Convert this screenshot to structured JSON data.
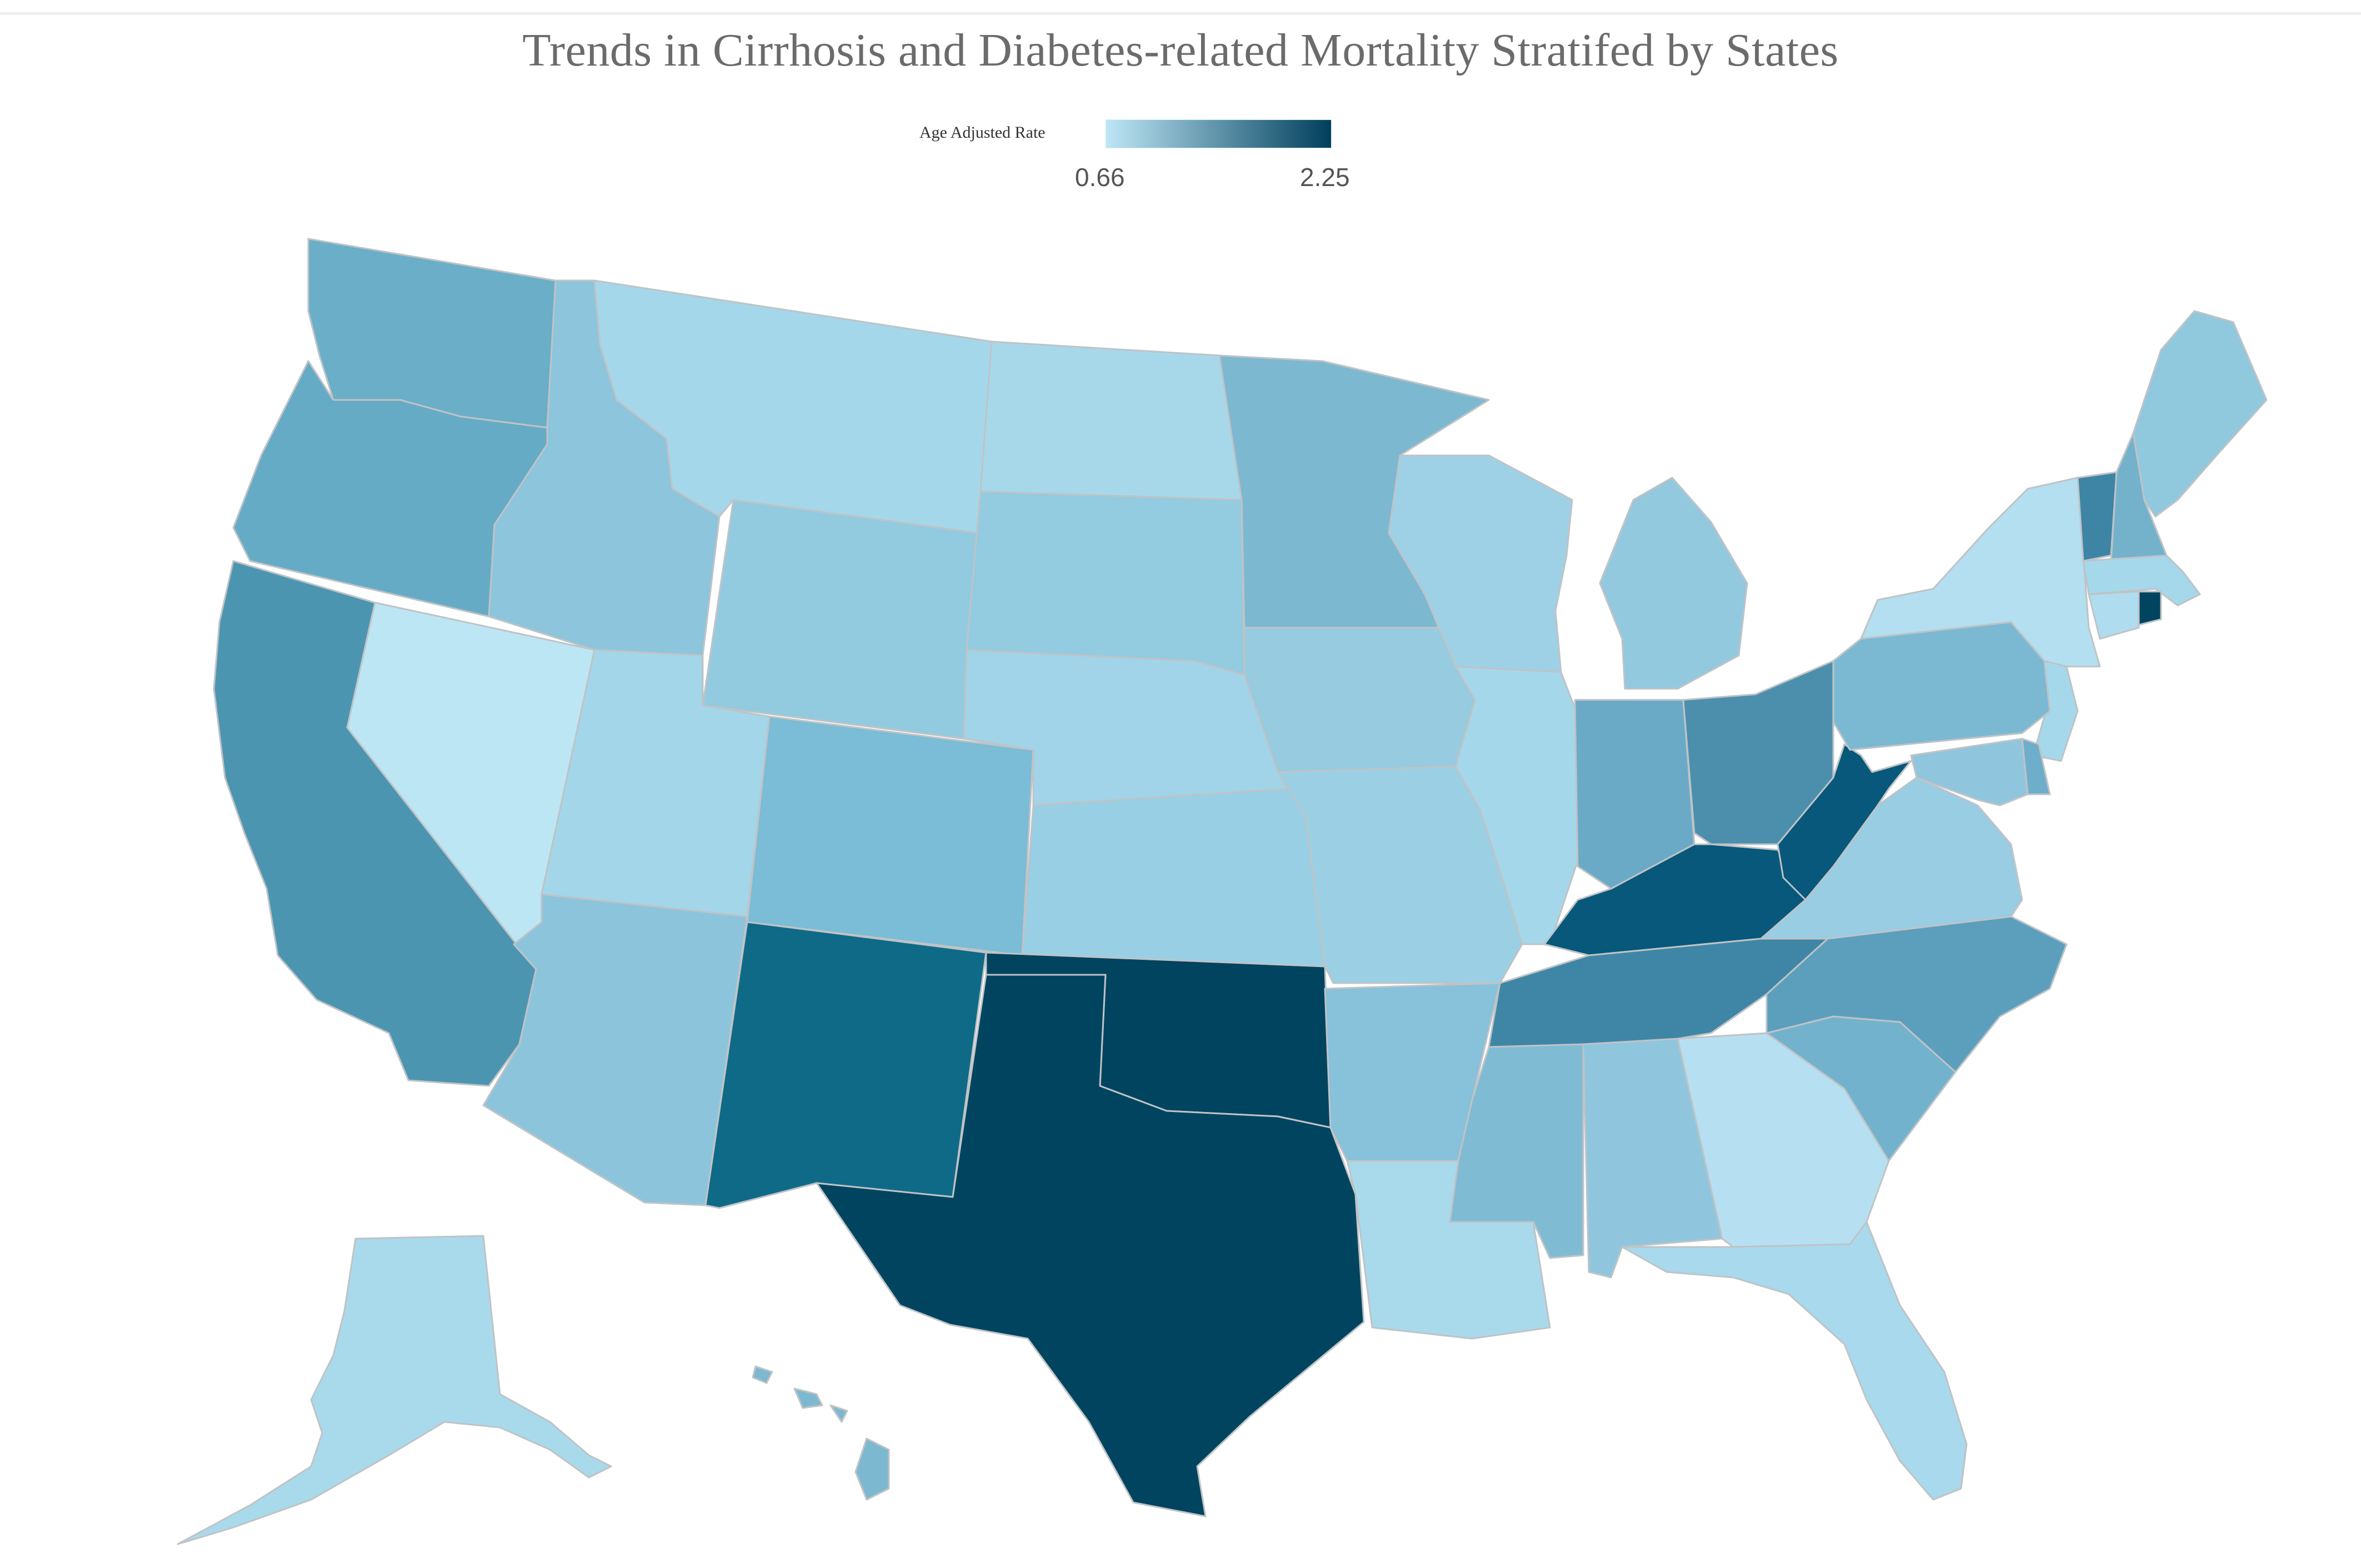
{
  "title": "Trends in Cirrhosis and Diabetes-related Mortality Stratifed by States",
  "legend": {
    "label": "Age Adjusted Rate",
    "min_label": "0.66",
    "max_label": "2.25",
    "min": 0.66,
    "max": 2.25,
    "color_min": "#bde6f5",
    "color_max": "#003f5c"
  },
  "states": [
    {
      "id": "WA",
      "name": "Washington",
      "color": "#6aaec8"
    },
    {
      "id": "OR",
      "name": "Oregon",
      "color": "#66abc5"
    },
    {
      "id": "CA",
      "name": "California",
      "color": "#4c95b1"
    },
    {
      "id": "NV",
      "name": "Nevada",
      "color": "#bde6f5"
    },
    {
      "id": "ID",
      "name": "Idaho",
      "color": "#8cc5dc"
    },
    {
      "id": "MT",
      "name": "Montana",
      "color": "#a5d7ea"
    },
    {
      "id": "WY",
      "name": "Wyoming",
      "color": "#92cbe0"
    },
    {
      "id": "UT",
      "name": "Utah",
      "color": "#a3d6e9"
    },
    {
      "id": "AZ",
      "name": "Arizona",
      "color": "#8cc4dc"
    },
    {
      "id": "CO",
      "name": "Colorado",
      "color": "#7bbcd6"
    },
    {
      "id": "NM",
      "name": "New Mexico",
      "color": "#0f6a88"
    },
    {
      "id": "ND",
      "name": "North Dakota",
      "color": "#a6d8ea"
    },
    {
      "id": "SD",
      "name": "South Dakota",
      "color": "#93cbe0"
    },
    {
      "id": "NE",
      "name": "Nebraska",
      "color": "#a1d4e8"
    },
    {
      "id": "KS",
      "name": "Kansas",
      "color": "#98cfe4"
    },
    {
      "id": "OK",
      "name": "Oklahoma",
      "color": "#00445f"
    },
    {
      "id": "TX",
      "name": "Texas",
      "color": "#00445f"
    },
    {
      "id": "MN",
      "name": "Minnesota",
      "color": "#7db8d1"
    },
    {
      "id": "IA",
      "name": "Iowa",
      "color": "#96cbe0"
    },
    {
      "id": "MO",
      "name": "Missouri",
      "color": "#9bd0e4"
    },
    {
      "id": "AR",
      "name": "Arkansas",
      "color": "#87c1da"
    },
    {
      "id": "LA",
      "name": "Louisiana",
      "color": "#a8daec"
    },
    {
      "id": "WI",
      "name": "Wisconsin",
      "color": "#9fd1e6"
    },
    {
      "id": "IL",
      "name": "Illinois",
      "color": "#a5d7ea"
    },
    {
      "id": "MI",
      "name": "Michigan",
      "color": "#92c9df"
    },
    {
      "id": "IN",
      "name": "Indiana",
      "color": "#6aaac6"
    },
    {
      "id": "OH",
      "name": "Ohio",
      "color": "#4b8fad"
    },
    {
      "id": "KY",
      "name": "Kentucky",
      "color": "#07587a"
    },
    {
      "id": "TN",
      "name": "Tennessee",
      "color": "#3f86a6"
    },
    {
      "id": "MS",
      "name": "Mississippi",
      "color": "#80bbd4"
    },
    {
      "id": "AL",
      "name": "Alabama",
      "color": "#8fc6dd"
    },
    {
      "id": "GA",
      "name": "Georgia",
      "color": "#b6e0f1"
    },
    {
      "id": "FL",
      "name": "Florida",
      "color": "#a8d9ec"
    },
    {
      "id": "SC",
      "name": "South Carolina",
      "color": "#73b2cc"
    },
    {
      "id": "NC",
      "name": "North Carolina",
      "color": "#5c9fbd"
    },
    {
      "id": "VA",
      "name": "Virginia",
      "color": "#98cde3"
    },
    {
      "id": "WV",
      "name": "West Virginia",
      "color": "#07587a"
    },
    {
      "id": "PA",
      "name": "Pennsylvania",
      "color": "#7bb9d3"
    },
    {
      "id": "NY",
      "name": "New York",
      "color": "#b3dff0"
    },
    {
      "id": "VT",
      "name": "Vermont",
      "color": "#3e84a4"
    },
    {
      "id": "NH",
      "name": "New Hampshire",
      "color": "#74b2cc"
    },
    {
      "id": "ME",
      "name": "Maine",
      "color": "#90c8de"
    },
    {
      "id": "MA",
      "name": "Massachusetts",
      "color": "#a6d8eb"
    },
    {
      "id": "CT",
      "name": "Connecticut",
      "color": "#b0dcef"
    },
    {
      "id": "RI",
      "name": "Rhode Island",
      "color": "#00445f"
    },
    {
      "id": "NJ",
      "name": "New Jersey",
      "color": "#a6d8eb"
    },
    {
      "id": "DE",
      "name": "Delaware",
      "color": "#6faecb"
    },
    {
      "id": "MD",
      "name": "Maryland",
      "color": "#8fc6dd"
    },
    {
      "id": "AK",
      "name": "Alaska",
      "color": "#a8daec"
    },
    {
      "id": "HI",
      "name": "Hawaii",
      "color": "#7db8d1"
    }
  ]
}
